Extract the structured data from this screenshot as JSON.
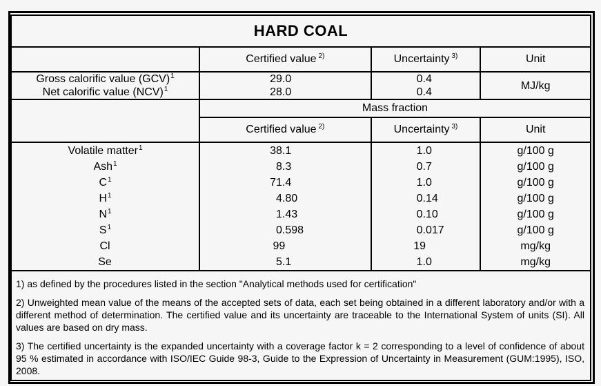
{
  "title": "HARD COAL",
  "header": {
    "certified_label": "Certified value",
    "certified_sup": "2)",
    "uncertainty_label": "Uncertainty",
    "uncertainty_sup": "3)",
    "unit_label": "Unit",
    "mass_fraction_label": "Mass fraction"
  },
  "calorific": {
    "rows": [
      {
        "label": "Gross calorific value (GCV)",
        "sup": "1",
        "certified": "29.0",
        "uncertainty": "0.4"
      },
      {
        "label": "Net calorific value (NCV)",
        "sup": "1",
        "certified": "28.0",
        "uncertainty": "0.4"
      }
    ],
    "unit": "MJ/kg"
  },
  "mass_fraction_rows": [
    {
      "label": "Volatile matter",
      "sup": "1",
      "certified": "38.1",
      "uncertainty": "1.0",
      "unit": "g/100 g"
    },
    {
      "label": "Ash",
      "sup": "1",
      "certified": "8.3",
      "uncertainty": "0.7",
      "unit": "g/100 g"
    },
    {
      "label": "C",
      "sup": "1",
      "certified": "71.4",
      "uncertainty": "1.0",
      "unit": "g/100 g"
    },
    {
      "label": "H",
      "sup": "1",
      "certified": "4.80",
      "uncertainty": "0.14",
      "unit": "g/100 g"
    },
    {
      "label": "N",
      "sup": "1",
      "certified": "1.43",
      "uncertainty": "0.10",
      "unit": "g/100 g"
    },
    {
      "label": "S",
      "sup": "1",
      "certified": "0.598",
      "uncertainty": "0.017",
      "unit": "g/100 g"
    },
    {
      "label": "Cl",
      "sup": "",
      "certified": "99",
      "uncertainty": "19",
      "unit": "mg/kg"
    },
    {
      "label": "Se",
      "sup": "",
      "certified": "5.1",
      "uncertainty": "1.0",
      "unit": "mg/kg"
    }
  ],
  "footnotes": [
    "1) as defined by the procedures listed in the section \"Analytical methods used for certification\"",
    "2) Unweighted mean value of the means of the accepted sets of data, each set being obtained in a different laboratory and/or with a different method of determination. The certified value and its uncertainty are traceable to the International System of units (SI). All values are based on dry mass.",
    "3) The certified uncertainty is the expanded uncertainty with a coverage factor k = 2 corresponding to a level of confidence of about 95 % estimated in accordance with ISO/IEC Guide 98-3, Guide to the Expression of Uncertainty in Measurement (GUM:1995), ISO, 2008."
  ],
  "colors": {
    "background": "#f6f6f7",
    "border": "#000000",
    "text": "#000000"
  }
}
